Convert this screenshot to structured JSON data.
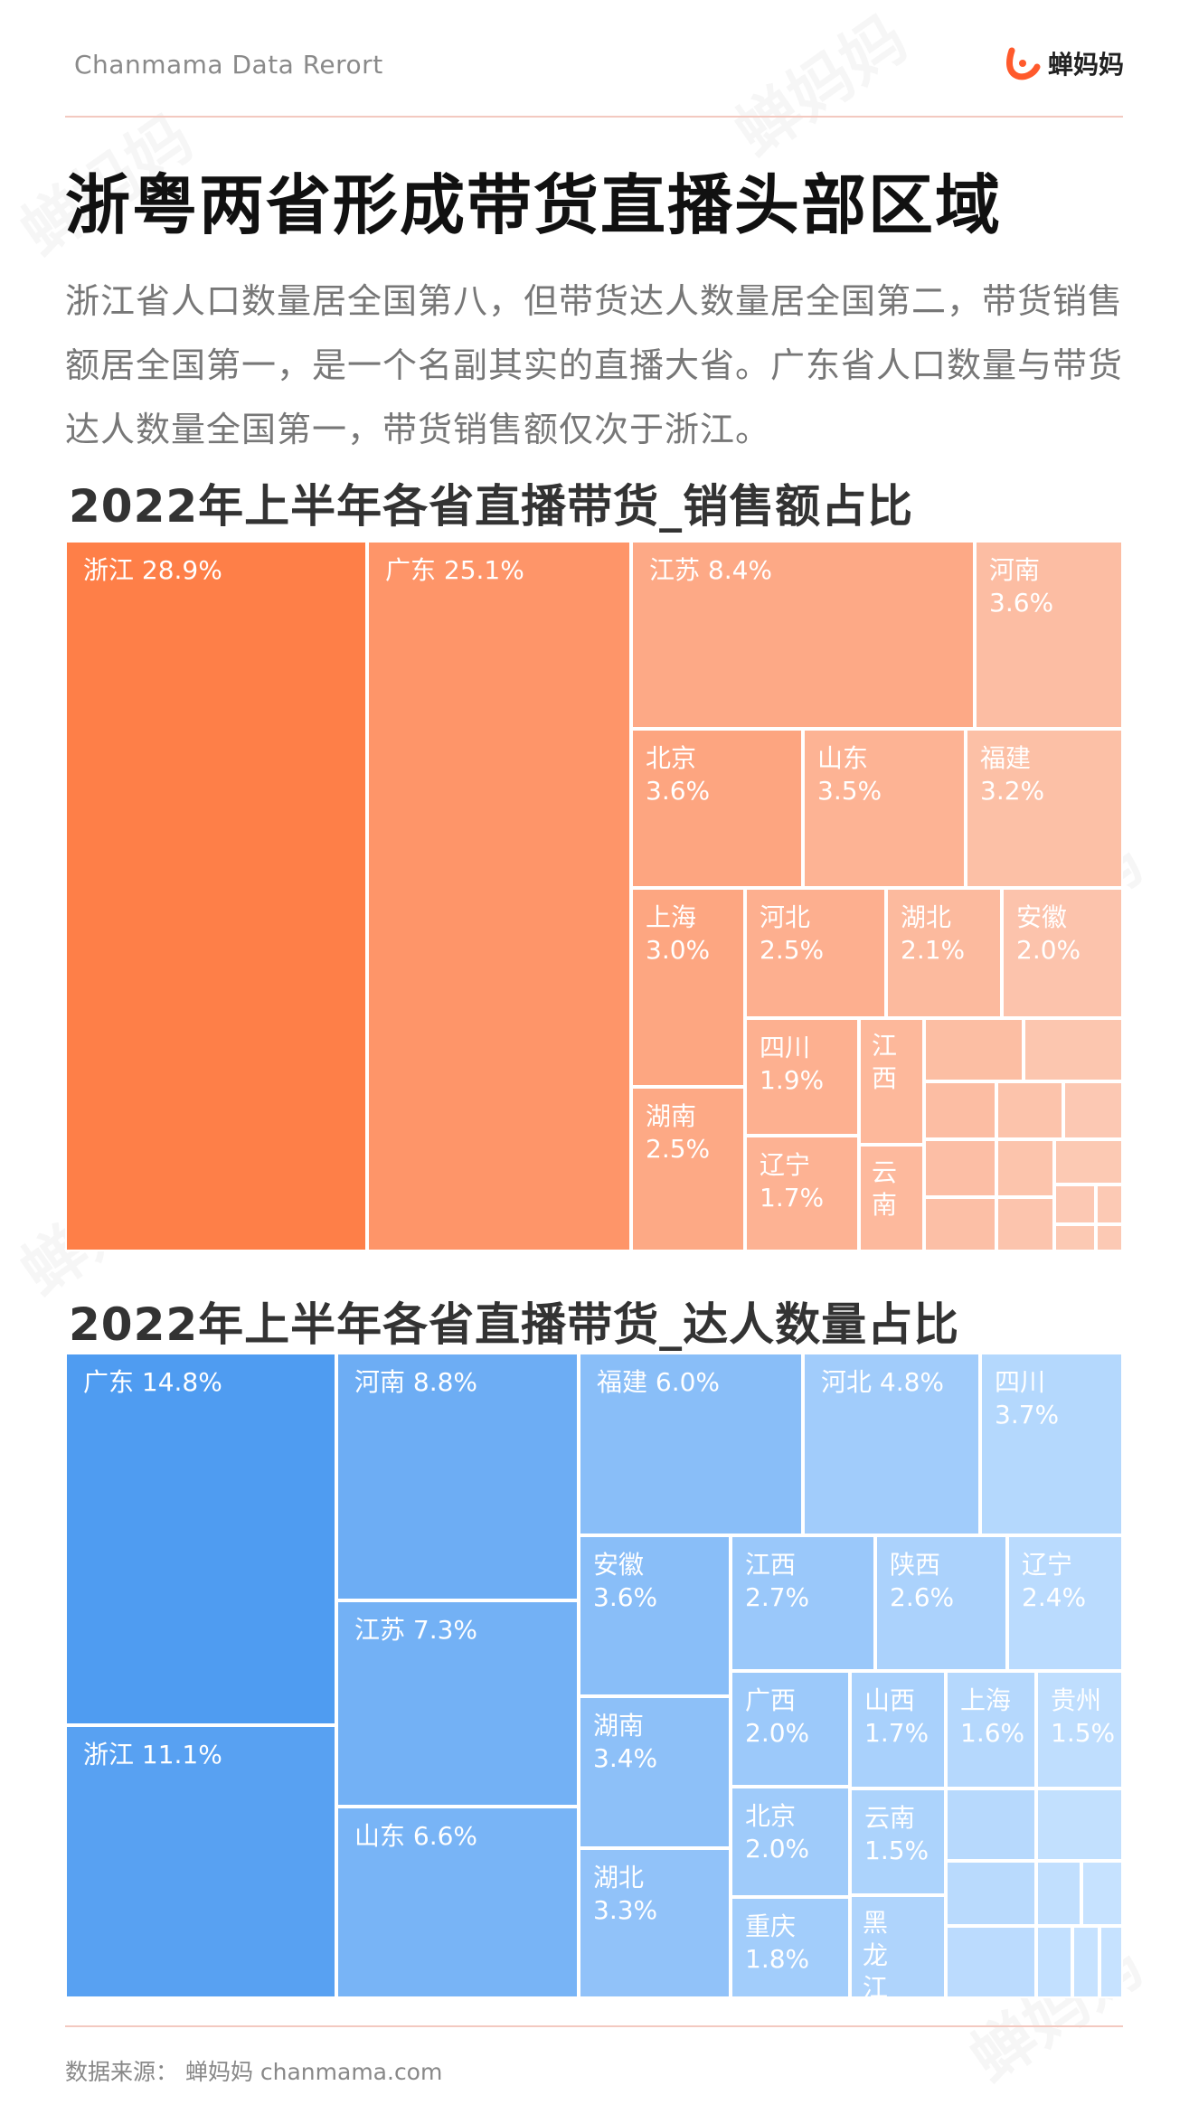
{
  "header": {
    "brand": "Chanmama Data Rerort",
    "logo_text": "蝉妈妈",
    "logo_icon": "chanmama-logo-icon"
  },
  "headline": "浙粤两省形成带货直播头部区域",
  "intro": "浙江省人口数量居全国第八，但带货达人数量居全国第二，带货销售额居全国第一，是一个名副其实的直播大省。广东省人口数量与带货达人数量全国第一，带货销售额仅次于浙江。",
  "watermark_text": "蝉妈妈",
  "colors": {
    "sales_dark": "#ff6d2e",
    "sales_light": "#fcc9b4",
    "talent_dark": "#3a8fee",
    "talent_light": "#c6e2ff",
    "rule": "#f3c9c0"
  },
  "chart_data": [
    {
      "type": "treemap",
      "title": "2022年上半年各省直播带货_销售额占比",
      "series": [
        {
          "name": "浙江",
          "value": 28.9
        },
        {
          "name": "广东",
          "value": 25.1
        },
        {
          "name": "江苏",
          "value": 8.4
        },
        {
          "name": "河南",
          "value": 3.6
        },
        {
          "name": "北京",
          "value": 3.6
        },
        {
          "name": "山东",
          "value": 3.5
        },
        {
          "name": "福建",
          "value": 3.2
        },
        {
          "name": "上海",
          "value": 3.0
        },
        {
          "name": "河北",
          "value": 2.5
        },
        {
          "name": "湖北",
          "value": 2.1
        },
        {
          "name": "安徽",
          "value": 2.0
        },
        {
          "name": "湖南",
          "value": 2.5
        },
        {
          "name": "四川",
          "value": 1.9
        },
        {
          "name": "辽宁",
          "value": 1.7
        },
        {
          "name": "江西",
          "value": null
        },
        {
          "name": "云南",
          "value": null
        }
      ]
    },
    {
      "type": "treemap",
      "title": "2022年上半年各省直播带货_达人数量占比",
      "series": [
        {
          "name": "广东",
          "value": 14.8
        },
        {
          "name": "浙江",
          "value": 11.1
        },
        {
          "name": "河南",
          "value": 8.8
        },
        {
          "name": "江苏",
          "value": 7.3
        },
        {
          "name": "山东",
          "value": 6.6
        },
        {
          "name": "福建",
          "value": 6.0
        },
        {
          "name": "河北",
          "value": 4.8
        },
        {
          "name": "四川",
          "value": 3.7
        },
        {
          "name": "安徽",
          "value": 3.6
        },
        {
          "name": "湖南",
          "value": 3.4
        },
        {
          "name": "湖北",
          "value": 3.3
        },
        {
          "name": "江西",
          "value": 2.7
        },
        {
          "name": "陕西",
          "value": 2.6
        },
        {
          "name": "辽宁",
          "value": 2.4
        },
        {
          "name": "广西",
          "value": 2.0
        },
        {
          "name": "北京",
          "value": 2.0
        },
        {
          "name": "重庆",
          "value": 1.8
        },
        {
          "name": "山西",
          "value": 1.7
        },
        {
          "name": "云南",
          "value": 1.5
        },
        {
          "name": "黑龙江",
          "value": null
        },
        {
          "name": "上海",
          "value": 1.6
        },
        {
          "name": "贵州",
          "value": 1.5
        }
      ]
    }
  ],
  "source": "数据来源：  蝉妈妈  chanmama.com"
}
